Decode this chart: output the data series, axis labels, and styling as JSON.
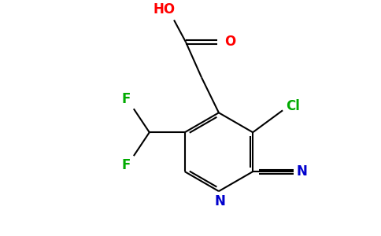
{
  "background_color": "#ffffff",
  "bond_color": "#000000",
  "atom_colors": {
    "O": "#ff0000",
    "N": "#0000cd",
    "Cl": "#00aa00",
    "F": "#00aa00",
    "HO": "#ff0000"
  },
  "figsize": [
    4.84,
    3.0
  ],
  "dpi": 100
}
